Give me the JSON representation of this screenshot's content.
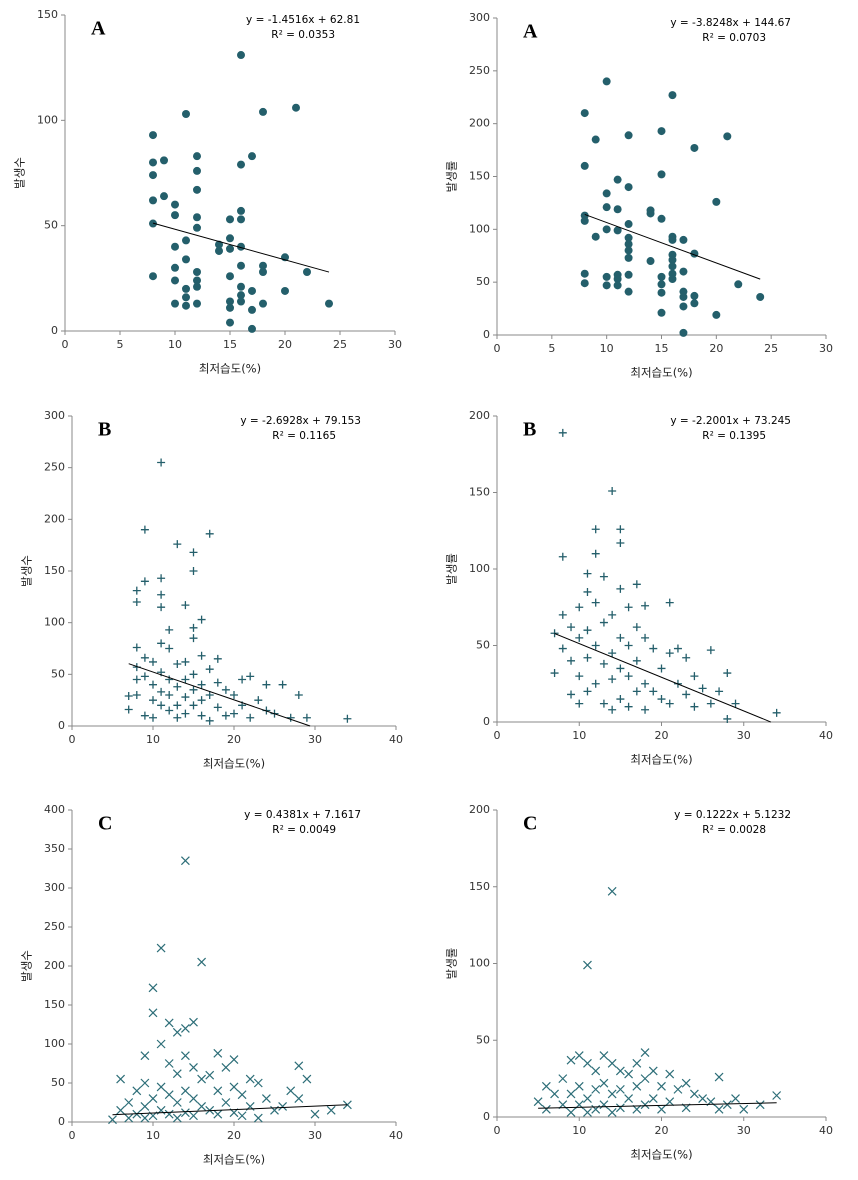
{
  "chart_data": [
    {
      "type": "scatter",
      "label": "A",
      "equation": "y = -1.4516x + 62.81",
      "r2": "R² = 0.0353",
      "x_label": "최저습도(%)",
      "y_label": "발생수",
      "marker": "circle",
      "color": "#245f6b",
      "xlim": [
        0,
        30
      ],
      "xticks": [
        0,
        5,
        10,
        15,
        20,
        25,
        30
      ],
      "ylim": [
        0,
        150
      ],
      "yticks": [
        0,
        50,
        100,
        150
      ],
      "x": [
        8,
        8,
        8,
        8,
        8,
        8,
        9,
        9,
        10,
        10,
        10,
        10,
        10,
        10,
        11,
        11,
        11,
        11,
        11,
        11,
        12,
        12,
        12,
        12,
        12,
        12,
        12,
        12,
        12,
        14,
        14,
        15,
        15,
        15,
        15,
        15,
        15,
        15,
        16,
        16,
        16,
        16,
        16,
        16,
        16,
        16,
        16,
        17,
        17,
        17,
        17,
        18,
        18,
        18,
        18,
        20,
        20,
        21,
        22,
        24
      ],
      "values": [
        93,
        80,
        74,
        62,
        51,
        26,
        81,
        64,
        60,
        55,
        40,
        30,
        24,
        13,
        103,
        43,
        34,
        20,
        16,
        12,
        83,
        76,
        67,
        54,
        49,
        28,
        24,
        21,
        13,
        41,
        38,
        53,
        44,
        39,
        26,
        14,
        11,
        4,
        131,
        79,
        57,
        53,
        40,
        31,
        21,
        17,
        14,
        83,
        19,
        10,
        1,
        104,
        31,
        28,
        13,
        35,
        19,
        106,
        28,
        13
      ],
      "trend": {
        "slope": -1.4516,
        "intercept": 62.81,
        "x": [
          8,
          24
        ]
      }
    },
    {
      "type": "scatter",
      "label": "A",
      "equation": "y = -3.8248x + 144.67",
      "r2": "R² = 0.0703",
      "x_label": "최저습도(%)",
      "y_label": "발생률",
      "marker": "circle",
      "color": "#245f6b",
      "xlim": [
        0,
        30
      ],
      "xticks": [
        0,
        5,
        10,
        15,
        20,
        25,
        30
      ],
      "ylim": [
        0,
        300
      ],
      "yticks": [
        0,
        50,
        100,
        150,
        200,
        250,
        300
      ],
      "x": [
        8,
        8,
        8,
        8,
        8,
        8,
        9,
        9,
        10,
        10,
        10,
        10,
        10,
        10,
        11,
        11,
        11,
        11,
        11,
        11,
        12,
        12,
        12,
        12,
        12,
        12,
        12,
        12,
        12,
        14,
        14,
        14,
        15,
        15,
        15,
        15,
        15,
        15,
        15,
        16,
        16,
        16,
        16,
        16,
        16,
        16,
        16,
        17,
        17,
        17,
        17,
        17,
        17,
        18,
        18,
        18,
        18,
        20,
        20,
        21,
        22,
        24
      ],
      "values": [
        210,
        160,
        113,
        108,
        58,
        49,
        185,
        93,
        240,
        134,
        121,
        100,
        55,
        47,
        147,
        119,
        99,
        57,
        53,
        47,
        189,
        140,
        105,
        92,
        86,
        80,
        73,
        57,
        41,
        118,
        115,
        70,
        193,
        152,
        110,
        55,
        48,
        40,
        21,
        227,
        93,
        90,
        76,
        71,
        65,
        58,
        53,
        90,
        60,
        41,
        36,
        27,
        2,
        177,
        77,
        37,
        30,
        126,
        19,
        188,
        48,
        36
      ],
      "trend": {
        "slope": -3.8248,
        "intercept": 144.67,
        "x": [
          8,
          24
        ]
      }
    },
    {
      "type": "scatter",
      "label": "B",
      "equation": "y = -2.6928x + 79.153",
      "r2": "R² = 0.1165",
      "x_label": "최저습도(%)",
      "y_label": "발생수",
      "marker": "plus",
      "color": "#245f6b",
      "xlim": [
        0,
        40
      ],
      "xticks": [
        0,
        10,
        20,
        30,
        40
      ],
      "ylim": [
        0,
        300
      ],
      "yticks": [
        0,
        50,
        100,
        150,
        200,
        250,
        300
      ],
      "x": [
        7,
        7,
        8,
        8,
        8,
        8,
        8,
        8,
        9,
        9,
        9,
        9,
        9,
        10,
        10,
        10,
        10,
        11,
        11,
        11,
        11,
        11,
        11,
        11,
        11,
        12,
        12,
        12,
        12,
        12,
        13,
        13,
        13,
        13,
        13,
        14,
        14,
        14,
        14,
        14,
        15,
        15,
        15,
        15,
        15,
        15,
        15,
        16,
        16,
        16,
        16,
        16,
        17,
        17,
        17,
        17,
        18,
        18,
        18,
        19,
        19,
        20,
        20,
        21,
        21,
        22,
        22,
        23,
        24,
        24,
        25,
        26,
        27,
        28,
        29,
        34
      ],
      "values": [
        16,
        29,
        131,
        120,
        76,
        57,
        45,
        30,
        190,
        140,
        66,
        48,
        10,
        62,
        40,
        25,
        8,
        255,
        143,
        127,
        115,
        80,
        52,
        33,
        20,
        93,
        75,
        45,
        30,
        15,
        176,
        60,
        38,
        20,
        8,
        117,
        62,
        45,
        28,
        12,
        168,
        150,
        95,
        85,
        50,
        35,
        20,
        103,
        68,
        40,
        25,
        10,
        186,
        55,
        30,
        5,
        65,
        42,
        18,
        35,
        10,
        30,
        12,
        45,
        20,
        48,
        8,
        25,
        40,
        15,
        12,
        40,
        8,
        30,
        8,
        7
      ],
      "trend": {
        "slope": -2.6928,
        "intercept": 79.153,
        "x": [
          7,
          29.4
        ]
      }
    },
    {
      "type": "scatter",
      "label": "B",
      "equation": "y = -2.2001x + 73.245",
      "r2": "R² = 0.1395",
      "x_label": "최저습도(%)",
      "y_label": "발생률",
      "marker": "plus",
      "color": "#245f6b",
      "xlim": [
        0,
        40
      ],
      "xticks": [
        0,
        10,
        20,
        30,
        40
      ],
      "ylim": [
        0,
        200
      ],
      "yticks": [
        0,
        50,
        100,
        150,
        200
      ],
      "x": [
        7,
        7,
        8,
        8,
        8,
        8,
        9,
        9,
        9,
        10,
        10,
        10,
        10,
        11,
        11,
        11,
        11,
        11,
        12,
        12,
        12,
        12,
        12,
        13,
        13,
        13,
        13,
        14,
        14,
        14,
        14,
        14,
        15,
        15,
        15,
        15,
        15,
        15,
        16,
        16,
        16,
        16,
        17,
        17,
        17,
        17,
        18,
        18,
        18,
        18,
        19,
        19,
        20,
        20,
        21,
        21,
        21,
        22,
        22,
        23,
        23,
        24,
        24,
        25,
        26,
        26,
        27,
        28,
        28,
        29,
        34
      ],
      "values": [
        58,
        32,
        189,
        108,
        70,
        48,
        62,
        40,
        18,
        75,
        55,
        30,
        12,
        97,
        85,
        60,
        42,
        20,
        126,
        110,
        78,
        50,
        25,
        95,
        65,
        38,
        12,
        151,
        70,
        45,
        28,
        8,
        126,
        117,
        87,
        55,
        35,
        15,
        75,
        50,
        30,
        10,
        90,
        62,
        40,
        20,
        76,
        55,
        25,
        8,
        48,
        20,
        35,
        15,
        78,
        45,
        12,
        48,
        25,
        42,
        18,
        30,
        10,
        22,
        47,
        12,
        20,
        32,
        2,
        12,
        6
      ],
      "trend": {
        "slope": -2.2001,
        "intercept": 73.245,
        "x": [
          7,
          33.3
        ]
      }
    },
    {
      "type": "scatter",
      "label": "C",
      "equation": "y = 0.4381x + 7.1617",
      "r2": "R² = 0.0049",
      "x_label": "최저습도(%)",
      "y_label": "발생수",
      "marker": "cross",
      "color": "#2d6e78",
      "xlim": [
        0,
        40
      ],
      "xticks": [
        0,
        10,
        20,
        30,
        40
      ],
      "ylim": [
        0,
        400
      ],
      "yticks": [
        0,
        50,
        100,
        150,
        200,
        250,
        300,
        350,
        400
      ],
      "x": [
        5,
        6,
        6,
        7,
        7,
        8,
        8,
        9,
        9,
        9,
        9,
        10,
        10,
        10,
        10,
        11,
        11,
        11,
        11,
        12,
        12,
        12,
        12,
        13,
        13,
        13,
        13,
        14,
        14,
        14,
        14,
        14,
        15,
        15,
        15,
        15,
        16,
        16,
        16,
        17,
        17,
        18,
        18,
        18,
        19,
        19,
        20,
        20,
        20,
        21,
        21,
        22,
        22,
        23,
        23,
        24,
        25,
        26,
        27,
        28,
        28,
        29,
        30,
        32,
        34
      ],
      "values": [
        3,
        55,
        15,
        25,
        5,
        40,
        10,
        85,
        50,
        20,
        5,
        172,
        140,
        30,
        8,
        223,
        100,
        45,
        15,
        127,
        75,
        35,
        10,
        115,
        62,
        25,
        5,
        335,
        120,
        85,
        40,
        12,
        128,
        70,
        30,
        8,
        205,
        55,
        20,
        60,
        15,
        88,
        40,
        10,
        70,
        25,
        80,
        45,
        12,
        35,
        8,
        55,
        20,
        50,
        5,
        30,
        15,
        20,
        40,
        72,
        30,
        55,
        10,
        15,
        22
      ],
      "trend": {
        "slope": 0.4381,
        "intercept": 7.1617,
        "x": [
          5,
          34
        ]
      }
    },
    {
      "type": "scatter",
      "label": "C",
      "equation": "y = 0.1222x + 5.1232",
      "r2": "R² = 0.0028",
      "x_label": "최저습도(%)",
      "y_label": "발생률",
      "marker": "cross",
      "color": "#2d6e78",
      "xlim": [
        0,
        40
      ],
      "xticks": [
        0,
        10,
        20,
        30,
        40
      ],
      "ylim": [
        0,
        200
      ],
      "yticks": [
        0,
        50,
        100,
        150,
        200
      ],
      "x": [
        5,
        6,
        6,
        7,
        8,
        8,
        9,
        9,
        9,
        10,
        10,
        10,
        11,
        11,
        11,
        11,
        12,
        12,
        12,
        13,
        13,
        13,
        14,
        14,
        14,
        14,
        15,
        15,
        15,
        16,
        16,
        17,
        17,
        17,
        18,
        18,
        18,
        19,
        19,
        20,
        20,
        21,
        21,
        22,
        23,
        23,
        24,
        25,
        26,
        27,
        27,
        28,
        29,
        30,
        32,
        34
      ],
      "values": [
        10,
        20,
        5,
        15,
        25,
        8,
        37,
        15,
        3,
        40,
        20,
        8,
        99,
        35,
        12,
        3,
        30,
        18,
        5,
        40,
        22,
        8,
        147,
        35,
        15,
        3,
        30,
        18,
        6,
        28,
        12,
        35,
        20,
        5,
        42,
        25,
        8,
        30,
        12,
        20,
        5,
        28,
        10,
        18,
        22,
        6,
        15,
        12,
        10,
        26,
        5,
        8,
        12,
        5,
        8,
        14
      ],
      "trend": {
        "slope": 0.1222,
        "intercept": 5.1232,
        "x": [
          5,
          34
        ]
      }
    }
  ]
}
